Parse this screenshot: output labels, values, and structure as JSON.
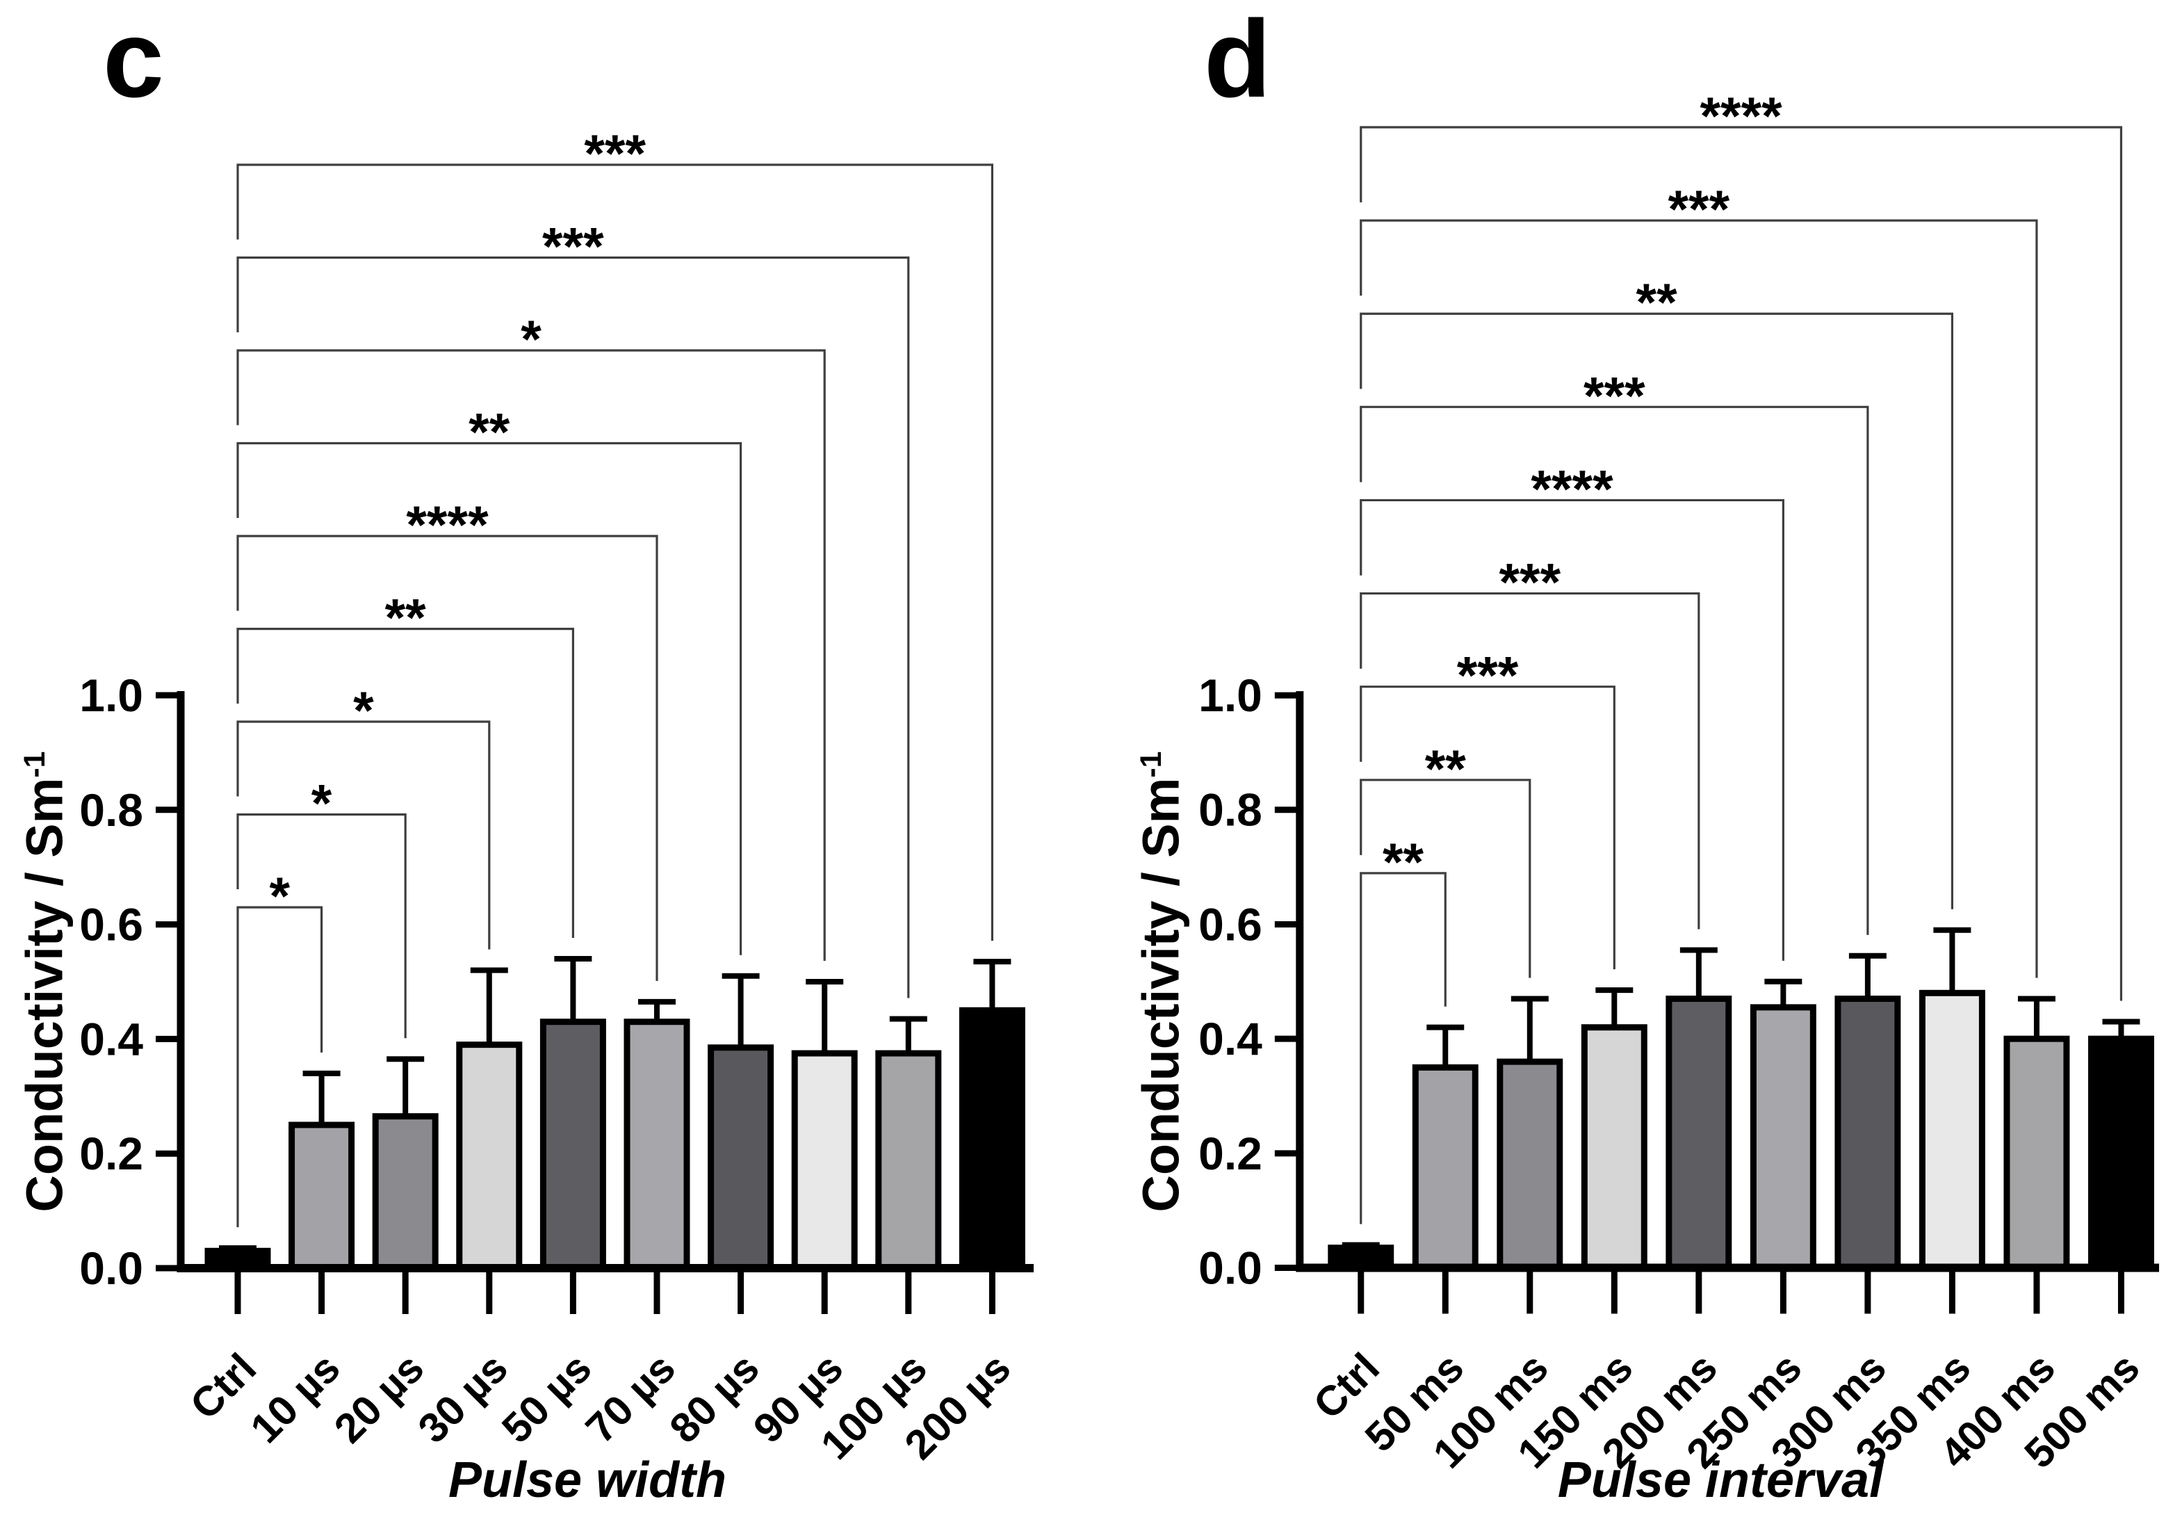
{
  "figure": {
    "background": "#ffffff",
    "text_color": "#000000",
    "bar_outline_color": "#000000",
    "bracket_line_color": "#3f3f3f"
  },
  "chart_data": [
    {
      "type": "bar",
      "panel_letter": "c",
      "title": "",
      "xlabel": "Pulse width",
      "ylabel": "Conductivity / Sm",
      "ylabel_superscript": "-1",
      "categories": [
        "Ctrl",
        "10 µs",
        "20 µs",
        "30 µs",
        "50 µs",
        "70 µs",
        "80 µs",
        "90 µs",
        "100 µs",
        "200 µs"
      ],
      "values": [
        0.03,
        0.25,
        0.265,
        0.39,
        0.43,
        0.43,
        0.385,
        0.375,
        0.375,
        0.45
      ],
      "errors_plus": [
        0.005,
        0.09,
        0.1,
        0.13,
        0.11,
        0.035,
        0.125,
        0.125,
        0.06,
        0.085
      ],
      "ylim": [
        0,
        1.0
      ],
      "yticks": [
        "0.0",
        "0.2",
        "0.4",
        "0.6",
        "0.8",
        "1.0"
      ],
      "grid": false,
      "legend": "none",
      "bar_colors": [
        "#000000",
        "#a3a3a7",
        "#8b8b8f",
        "#d6d6d6",
        "#5e5e62",
        "#a7a7ab",
        "#59595d",
        "#e8e8e8",
        "#a5a5a8",
        "#000000"
      ],
      "significance_vs_ctrl": [
        {
          "target": "10 µs",
          "stars": "*"
        },
        {
          "target": "20 µs",
          "stars": "*"
        },
        {
          "target": "30 µs",
          "stars": "*"
        },
        {
          "target": "50 µs",
          "stars": "**"
        },
        {
          "target": "70 µs",
          "stars": "****"
        },
        {
          "target": "80 µs",
          "stars": "**"
        },
        {
          "target": "90 µs",
          "stars": "*"
        },
        {
          "target": "100 µs",
          "stars": "***"
        },
        {
          "target": "200 µs",
          "stars": "***"
        }
      ]
    },
    {
      "type": "bar",
      "panel_letter": "d",
      "title": "",
      "xlabel": "Pulse interval",
      "ylabel": "Conductivity / Sm",
      "ylabel_superscript": "-1",
      "categories": [
        "Ctrl",
        "50 ms",
        "100 ms",
        "150 ms",
        "200 ms",
        "250 ms",
        "300 ms",
        "350 ms",
        "400 ms",
        "500 ms"
      ],
      "values": [
        0.035,
        0.35,
        0.36,
        0.42,
        0.47,
        0.455,
        0.47,
        0.48,
        0.4,
        0.4
      ],
      "errors_plus": [
        0.005,
        0.07,
        0.11,
        0.065,
        0.085,
        0.045,
        0.075,
        0.11,
        0.07,
        0.03
      ],
      "ylim": [
        0,
        1.0
      ],
      "yticks": [
        "0.0",
        "0.2",
        "0.4",
        "0.6",
        "0.8",
        "1.0"
      ],
      "grid": false,
      "legend": "none",
      "bar_colors": [
        "#000000",
        "#a3a3a7",
        "#8b8b8f",
        "#d6d6d6",
        "#5e5e62",
        "#a7a7ab",
        "#59595d",
        "#e8e8e8",
        "#a5a5a8",
        "#000000"
      ],
      "significance_vs_ctrl": [
        {
          "target": "50 ms",
          "stars": "**"
        },
        {
          "target": "100 ms",
          "stars": "**"
        },
        {
          "target": "150 ms",
          "stars": "***"
        },
        {
          "target": "200 ms",
          "stars": "***"
        },
        {
          "target": "250 ms",
          "stars": "****"
        },
        {
          "target": "300 ms",
          "stars": "***"
        },
        {
          "target": "350 ms",
          "stars": "**"
        },
        {
          "target": "400 ms",
          "stars": "***"
        },
        {
          "target": "500 ms",
          "stars": "****"
        }
      ]
    }
  ]
}
